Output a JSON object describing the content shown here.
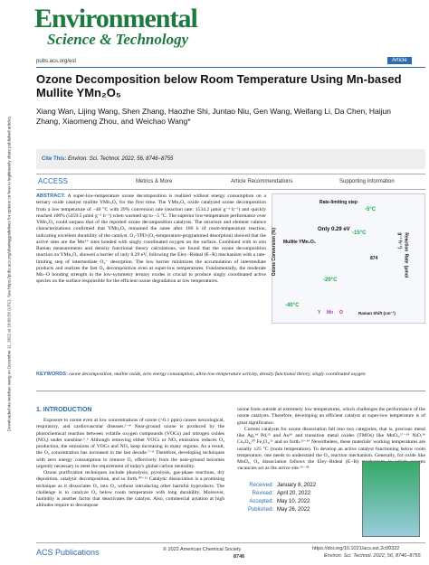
{
  "header": {
    "journal_line1": "Environmental",
    "journal_line2": "Science & Technology",
    "url": "pubs.acs.org/est",
    "tag": "Article"
  },
  "sidebar": "Downloaded via weichao wang on December 11, 2022 at 10:09:56 (UTC). See https://pubs.acs.org/sharingguidelines for options on how to legitimately share published articles.",
  "title": "Ozone Decomposition below Room Temperature Using Mn-based Mullite YMn₂O₅",
  "authors": "Xiang Wan, Lijing Wang, Shen Zhang, Haozhe Shi, Juntao Niu, Gen Wang, Weifang Li, Da Chen, Haijun Zhang, Xiaomeng Zhou, and Weichao Wang*",
  "cite": {
    "label": "Cite This:",
    "ref": "Environ. Sci. Technol. 2022, 56, 8746−8755"
  },
  "access": {
    "label": "ACCESS",
    "metrics": "Metrics & More",
    "recommendations": "Article Recommendations",
    "supporting": "Supporting Information"
  },
  "abstract": {
    "label": "ABSTRACT:",
    "text": "A super-low-temperature ozone decomposition is realized without energy consumption on a ternary oxide catalyst mullite YMn₂O₅ for the first time. The YMn₂O₅ oxide catalyzed ozone decomposition from a low temperature of −40 °C with 29% conversion rate (reaction rate: 1534.2 μmol g⁻¹ h⁻¹) and quickly reached 100% (5459.5 μmol g⁻¹ h⁻¹) when warmed up to −5 °C. The superior low-temperature performance over YMn₂O₅ could surpass that of the reported ozone decomposition catalysts. The structure and element valence characterizations confirmed that YMn₂O₅ remained the same after 100 h of room-temperature reaction, indicating excellent durability of the catalyst. O₂-TPD (O₂-temperature-programmed desorption) showed that the active sites are the Mn³⁺ sites bonded with singly coordinated oxygen on the surface. Combined with in situ Raman measurements and density functional theory calculations, we found that the ozone decomposition reaction on YMn₂O₅ showed a barrier of only 0.29 eV, following the Eley−Rideal (E−R) mechanism with a rate-limiting step of intermediate O₂⁻ desorption. The low barrier minimizes the accumulation of intermediate products and realizes the fast O₃ decomposition even at super-low temperatures. Fundamentally, the moderate Mn−O bonding strength in the low-symmetry ternary oxides is crucial to produce singly coordinated active species on the surface responsible for the efficient ozone degradation at low temperatures."
  },
  "graphic": {
    "left_axis": "Ozone Conversion (%)",
    "right_axis": "Reaction Rate (μmol g⁻¹ h⁻¹)",
    "step": "Rate-limiting step",
    "barrier": "Only 0.29 eV",
    "material": "Mullite YMn₂O₅",
    "t1": "-40°C",
    "t2": "-20°C",
    "t3": "-15°C",
    "t4": "-5°C",
    "raman": "Raman Shift (cm⁻¹)",
    "peak": "874",
    "y": "Y",
    "mn": "Mn",
    "o": "O"
  },
  "keywords": {
    "label": "KEYWORDS:",
    "text": "ozone decomposition, mullite oxide, zero energy consumption, ultra-low-temperature activity, density functional theory, singly coordinated oxygen"
  },
  "intro": {
    "heading": "1. INTRODUCTION",
    "left_p1": "Exposure to ozone even at low concentrations of ozone (>0.1 ppm) causes neurological, respiratory, and cardiovascular diseases.¹⁻⁴ Near-ground ozone is produced by the photochemical reaction between volatile oxygen compounds (VOCs) and nitrogen oxides (NOₓ) under sunshine.⁵˒⁶ Although removing either VOCs or NOₓ emissions reduces O₃ production, the emissions of VOCs and NOₓ keep increasing in many regions. As a result, the O₃ concentration has increased in the last decade.⁷⁻⁹ Therefore, developing techniques with zero energy consumption to remove O₃ effectively from the near-ground becomes urgently necessary to meet the requirement of today's global carbon neutrality.",
    "left_p2": "Ozone purification techniques include photolysis, pyrolysis, gas-phase reactions, dry deposition, catalytic decomposition, and so forth.¹⁰⁻¹³ Catalytic dissociation is a promising technique as it dissociates O₃ into O₂ without introducing other harmful byproducts. The challenge is to catalyze O₃ below room temperature with long durability. Moreover, humidity is another factor that deactivates the catalyst. Also, commercial aviation at high altitudes require to decompose",
    "right_p1": "ozone from outside at extremely low temperatures, which challenges the performance of the ozone catalysts. Therefore, developing an efficient catalyst at super-low temperature is of great significance.",
    "right_p2": "Current catalysts for ozone dissociation fall into two categories, that is, precious metal like Ag,¹⁴ Pd,¹⁵ and Au¹⁶ and transition metal oxides (TMOs) like MnOₓ,¹⁷⁻¹⁹ NiO,¹⁶ Co₃O₄,²⁰ Fe₂O₃,²¹ and so forth.²²⁻²⁴ Nevertheless, these materials' working temperatures are usually ≥25 °C (room temperature). To develop an active catalyst functioning below room temperature, one needs to understand the O₃ reaction mechanism. Generally, for oxide like MnOₓ, O₃ dissociation follows the Eley−Rideal (E−R) mechanism in which oxygen vacancies act as the active site.²⁵⁻²⁸"
  },
  "dates": [
    [
      "Received:",
      "January 8, 2022"
    ],
    [
      "Revised:",
      "April 20, 2022"
    ],
    [
      "Accepted:",
      "May 10, 2022"
    ],
    [
      "Published:",
      "May 26, 2022"
    ]
  ],
  "footer": {
    "publisher": "ACS Publications",
    "copyright": "© 2022 American Chemical Society",
    "page": "8746",
    "doi": "https://doi.org/10.1021/acs.est.2c00322",
    "ref": "Environ. Sci. Technol. 2022, 56, 8746−8755"
  }
}
